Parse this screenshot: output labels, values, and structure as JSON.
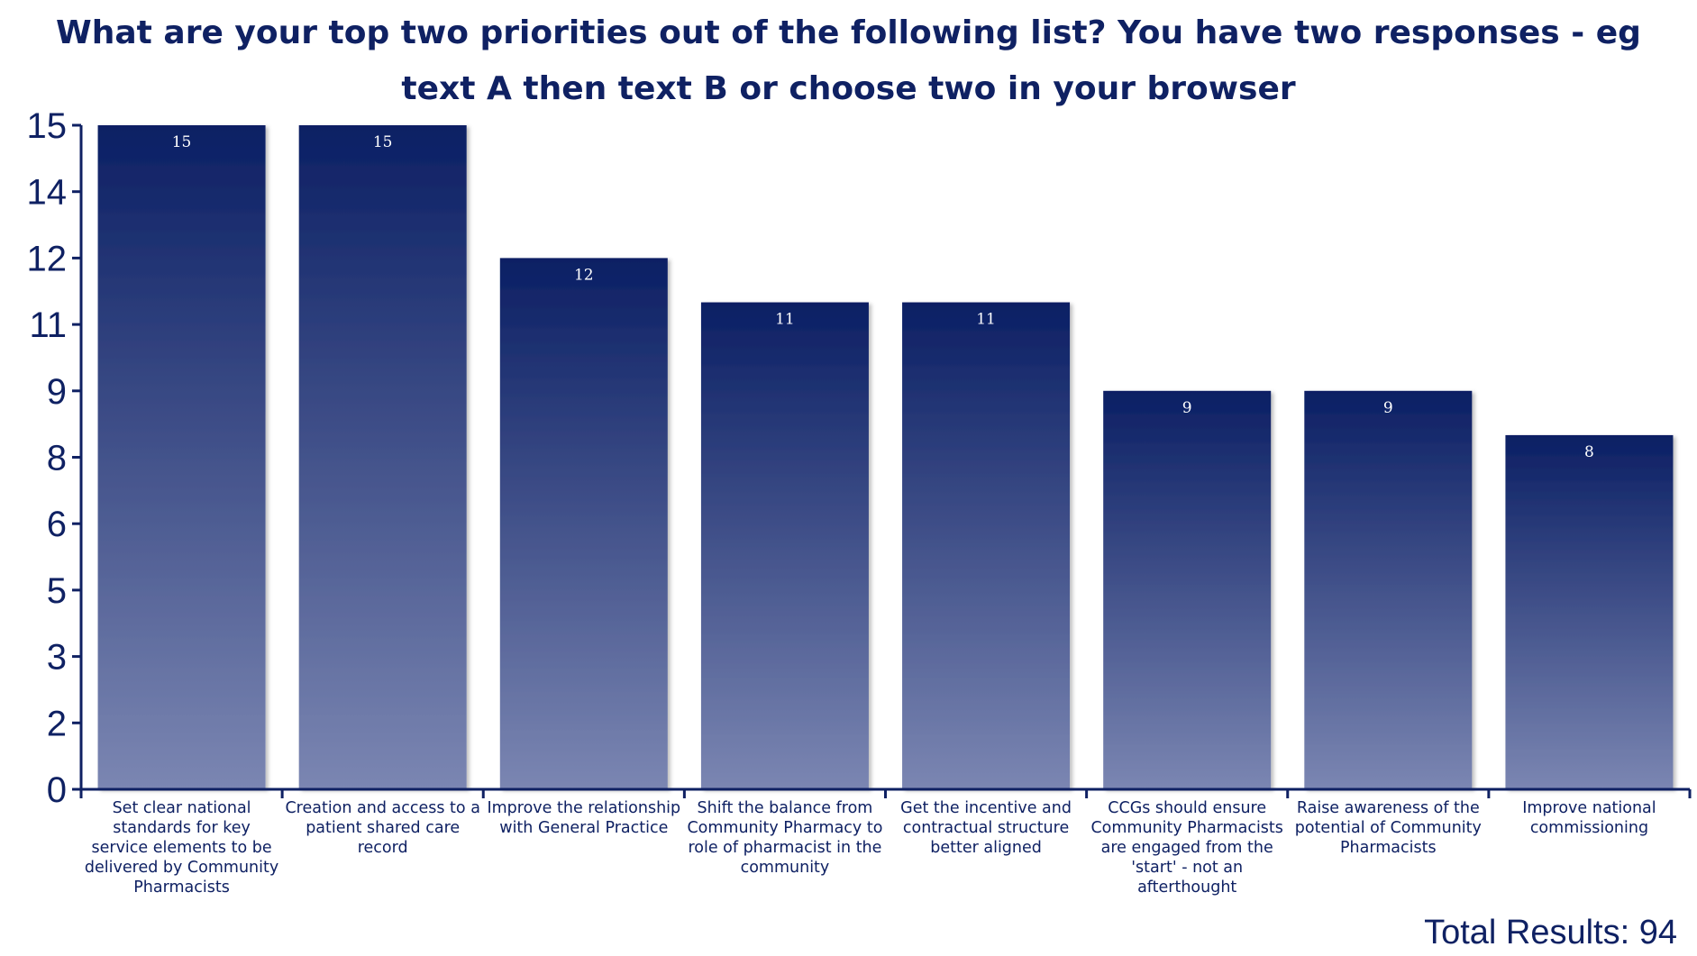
{
  "chart_data": {
    "type": "bar",
    "title": "What are your top two priorities out of the following list? You have two responses - eg text A then text B or choose two in your browser",
    "categories": [
      "Set clear national standards for key service elements to be delivered by Community Pharmacists",
      "Creation and access to a patient shared care record",
      "Improve the relationship with General Practice",
      "Shift the balance from Community Pharmacy to role of pharmacist in the community",
      "Get the incentive and contractual structure better aligned",
      "CCGs should ensure Community Pharmacists are engaged from the 'start' - not an afterthought",
      "Raise awareness of the potential of Community Pharmacists",
      "Improve national commissioning"
    ],
    "values": [
      15,
      15,
      12,
      11,
      11,
      9,
      9,
      8
    ],
    "y_tick_labels": [
      "0",
      "2",
      "3",
      "5",
      "6",
      "8",
      "9",
      "11",
      "12",
      "14",
      "15"
    ],
    "ylim": [
      0,
      15
    ],
    "grid": false,
    "legend": "none",
    "xlabel": "",
    "ylabel": "",
    "total_results_text": "Total Results: 94",
    "colors": {
      "bar_top": "#0b1f64",
      "bar_bottom": "#7b86b2",
      "axis": "#0f2163",
      "text": "#0f2163",
      "data_label": "#ffffff"
    }
  }
}
